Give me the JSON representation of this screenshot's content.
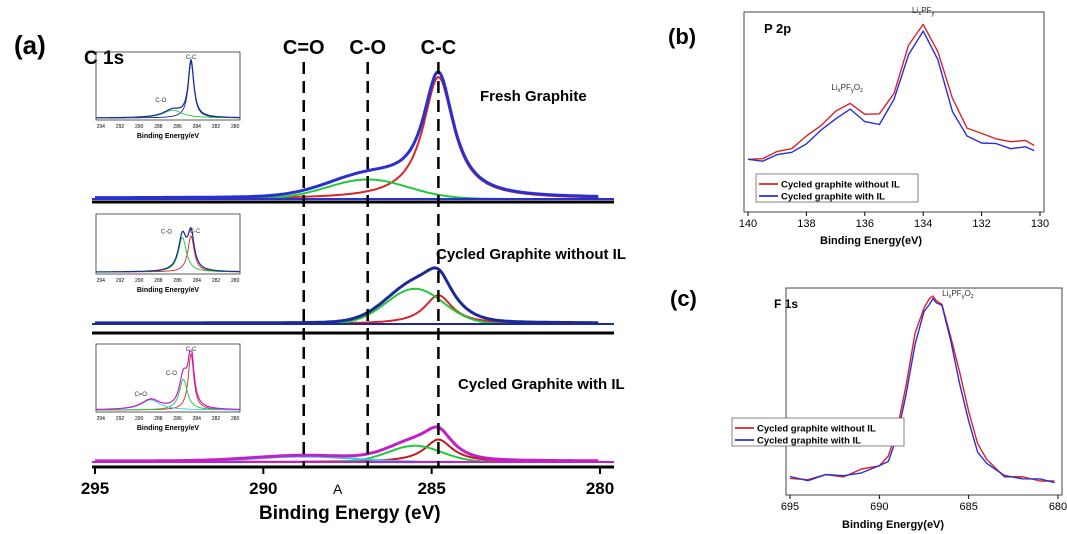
{
  "panels": {
    "a": {
      "label": "(a)",
      "element_title": "C 1s",
      "xlabel": "Binding Energy (eV)",
      "xticks": [
        295,
        290,
        285,
        280
      ],
      "xlim": [
        295,
        280
      ],
      "marker_A": "A",
      "peak_lines": [
        {
          "label": "C=O",
          "x": 288.8
        },
        {
          "label": "C-O",
          "x": 286.9
        },
        {
          "label": "C-C",
          "x": 284.8
        }
      ],
      "rows": [
        {
          "name": "Fresh Graphite"
        },
        {
          "name": "Cycled Graphite without IL"
        },
        {
          "name": "Cycled Graphite with IL"
        }
      ],
      "insets": [
        {
          "xlabel": "Binding Energy/eV",
          "ticks": [
            "294",
            "292",
            "290",
            "288",
            "286",
            "284",
            "282",
            "280"
          ],
          "peak_labels": [
            "C-C",
            "C-O"
          ]
        },
        {
          "xlabel": "Binding Energy/eV",
          "ticks": [
            "294",
            "292",
            "290",
            "288",
            "286",
            "284",
            "282",
            "280"
          ],
          "peak_labels": [
            "C-C",
            "C-O"
          ]
        },
        {
          "xlabel": "Binding Energy/eV",
          "ticks": [
            "294",
            "292",
            "290",
            "288",
            "286",
            "284",
            "282",
            "280"
          ],
          "peak_labels": [
            "C-C",
            "C-O",
            "C=O"
          ]
        }
      ]
    },
    "b": {
      "label": "(b)",
      "element_title": "P 2p",
      "xlabel": "Binding Energy(eV)",
      "xticks": [
        140,
        138,
        136,
        134,
        132,
        130
      ],
      "xlim": [
        140,
        130
      ],
      "peak_labels": [
        {
          "main": "Li",
          "sub1": "x",
          "mid": "PF",
          "sub2": "y"
        },
        {
          "main": "Li",
          "sub1": "x",
          "mid": "PF",
          "sub2": "y",
          "tail": "O",
          "sub3": "z"
        }
      ],
      "legend": [
        "Cycled graphite without IL",
        "Cycled graphite with  IL"
      ]
    },
    "c": {
      "label": "(c)",
      "element_title": "F 1s",
      "xlabel": "Binding Energy(eV)",
      "xticks": [
        695,
        690,
        685,
        680
      ],
      "xlim": [
        695,
        680
      ],
      "peak_label": {
        "main": "Li",
        "sub1": "x",
        "mid": "PF",
        "sub2": "y",
        "tail": "O",
        "sub3": "z"
      },
      "legend": [
        "Cycled graphite without IL",
        "Cycled graphite with IL"
      ]
    }
  },
  "colors": {
    "red": "#d8242a",
    "blue": "#2a2fd0",
    "green": "#22c83a",
    "navy": "#1c2a96",
    "magenta": "#c21fc8",
    "cyan": "#3ac9e6",
    "darkred": "#c21a1a",
    "black": "#000000"
  },
  "chart_data": [
    {
      "type": "line",
      "panel": "a",
      "xlabel": "Binding Energy (eV)",
      "xlim": [
        295,
        280
      ],
      "series": [
        {
          "name": "Fresh Graphite",
          "peaks": [
            {
              "component": "C-C",
              "center": 284.8,
              "height": 1.0,
              "width": 0.55,
              "color": "red"
            },
            {
              "component": "C-O",
              "center": 286.9,
              "height": 0.16,
              "width": 1.2,
              "color": "green"
            },
            {
              "component": "envelope",
              "color": "blue"
            }
          ]
        },
        {
          "name": "Cycled Graphite without IL",
          "peaks": [
            {
              "component": "C-C",
              "center": 284.8,
              "height": 0.45,
              "width": 0.5,
              "color": "red"
            },
            {
              "component": "C-O",
              "center": 285.5,
              "height": 0.55,
              "width": 0.85,
              "color": "green"
            },
            {
              "component": "envelope",
              "color": "navy"
            }
          ]
        },
        {
          "name": "Cycled Graphite with IL",
          "peaks": [
            {
              "component": "C-C",
              "center": 284.8,
              "height": 0.25,
              "width": 0.5,
              "color": "darkred"
            },
            {
              "component": "C-O",
              "center": 285.5,
              "height": 0.18,
              "width": 0.8,
              "color": "green"
            },
            {
              "component": "C=O",
              "center": 288.8,
              "height": 0.06,
              "width": 1.5,
              "color": "cyan"
            },
            {
              "component": "envelope",
              "color": "magenta"
            }
          ]
        }
      ]
    },
    {
      "type": "line",
      "panel": "b",
      "xlabel": "Binding Energy(eV)",
      "xlim": [
        140,
        130
      ],
      "series": [
        {
          "name": "Cycled graphite without IL",
          "color": "red",
          "x": [
            140,
            139.5,
            139,
            138.5,
            138,
            137.5,
            137,
            136.5,
            136,
            135.5,
            135,
            134.5,
            134,
            133.5,
            133,
            132.5,
            132,
            131.5,
            131,
            130.5,
            130.2
          ],
          "y": [
            0.12,
            0.13,
            0.16,
            0.2,
            0.26,
            0.34,
            0.43,
            0.47,
            0.42,
            0.4,
            0.55,
            0.85,
            0.98,
            0.82,
            0.5,
            0.33,
            0.28,
            0.25,
            0.24,
            0.23,
            0.22
          ]
        },
        {
          "name": "Cycled graphite with  IL",
          "color": "blue",
          "x": [
            140,
            139.5,
            139,
            138.5,
            138,
            137.5,
            137,
            136.5,
            136,
            135.5,
            135,
            134.5,
            134,
            133.5,
            133,
            132.5,
            132,
            131.5,
            131,
            130.5,
            130.2
          ],
          "y": [
            0.11,
            0.12,
            0.14,
            0.17,
            0.22,
            0.3,
            0.39,
            0.43,
            0.37,
            0.34,
            0.5,
            0.8,
            0.93,
            0.77,
            0.42,
            0.27,
            0.23,
            0.21,
            0.2,
            0.19,
            0.18
          ]
        }
      ]
    },
    {
      "type": "line",
      "panel": "c",
      "xlabel": "Binding Energy(eV)",
      "xlim": [
        695,
        680
      ],
      "series": [
        {
          "name": "Cycled graphite without IL",
          "color": "red",
          "x": [
            695,
            694,
            693,
            692,
            691,
            690,
            689.5,
            689,
            688.5,
            688,
            687.5,
            687.2,
            687,
            686.8,
            686.5,
            686,
            685.5,
            685,
            684.5,
            684,
            683,
            682,
            681,
            680.2
          ],
          "y": [
            0.05,
            0.05,
            0.06,
            0.07,
            0.09,
            0.12,
            0.17,
            0.3,
            0.55,
            0.8,
            0.95,
            0.99,
            1.0,
            0.99,
            0.95,
            0.8,
            0.6,
            0.4,
            0.24,
            0.14,
            0.07,
            0.05,
            0.04,
            0.04
          ]
        },
        {
          "name": "Cycled graphite with IL",
          "color": "blue",
          "x": [
            695,
            694,
            693,
            692,
            691,
            690,
            689.5,
            689,
            688.5,
            688,
            687.5,
            687.2,
            687,
            686.8,
            686.5,
            686,
            685.5,
            685,
            684.5,
            684,
            683,
            682,
            681,
            680.2
          ],
          "y": [
            0.05,
            0.05,
            0.06,
            0.07,
            0.08,
            0.11,
            0.15,
            0.26,
            0.5,
            0.75,
            0.92,
            0.97,
            0.98,
            0.98,
            0.95,
            0.77,
            0.55,
            0.34,
            0.2,
            0.12,
            0.07,
            0.05,
            0.04,
            0.04
          ]
        }
      ]
    }
  ]
}
